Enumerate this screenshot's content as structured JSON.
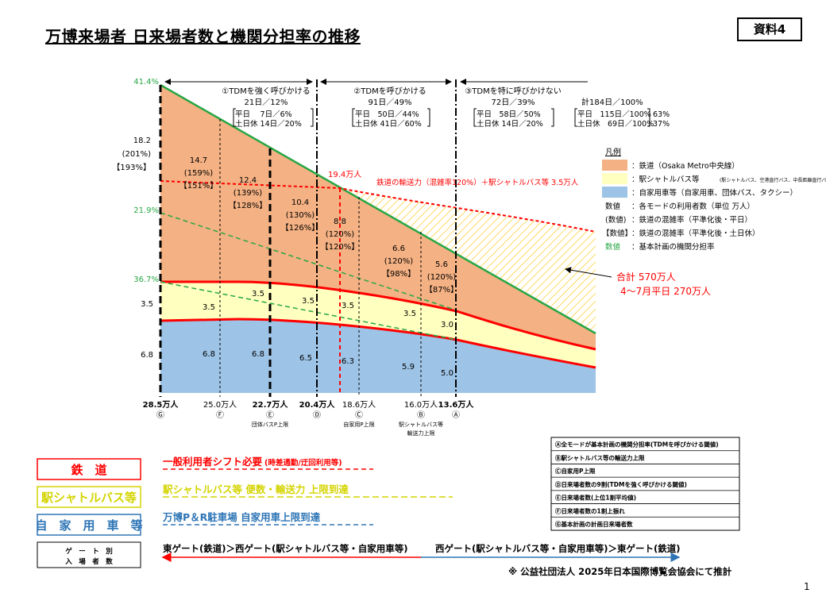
{
  "title": "万博来場者 日来場者数と機関分担率の推移",
  "doc_badge": "資料4",
  "footer_note": "※ 公益社団法人 2025年日本国際博覧会協会にて推計",
  "page_number": "1",
  "chart_data": {
    "type": "area",
    "title": "",
    "xlabel": "",
    "ylabel": "",
    "x_labels": [
      {
        "value": "28.5万人",
        "mark": "Ⓖ",
        "bold": true,
        "sub": ""
      },
      {
        "value": "25.0万人",
        "mark": "Ⓕ",
        "bold": false,
        "sub": ""
      },
      {
        "value": "22.7万人",
        "mark": "Ⓔ",
        "bold": true,
        "sub": "団体バスP上限"
      },
      {
        "value": "20.4万人",
        "mark": "Ⓓ",
        "bold": true,
        "sub": ""
      },
      {
        "value": "18.6万人",
        "mark": "Ⓒ",
        "bold": false,
        "sub": "自家用P上限"
      },
      {
        "value": "16.0万人",
        "mark": "Ⓑ",
        "bold": false,
        "sub": "駅シャトルバス等\n輸送力上限"
      },
      {
        "value": "13.6万人",
        "mark": "Ⓐ",
        "bold": true,
        "sub": ""
      }
    ],
    "series": [
      {
        "name": "鉄道（Osaka Metro中央線）",
        "color": "#f4b183"
      },
      {
        "name": "駅シャトルバス等",
        "color": "#ffffc0"
      },
      {
        "name": "自家用車等（自家用車、団体バス、タクシー）",
        "color": "#9dc3e6"
      }
    ],
    "left_axis_labels": [
      {
        "text": "41.4%",
        "green": true
      },
      {
        "text": "18.2",
        "green": false
      },
      {
        "text": "(201%)",
        "green": false
      },
      {
        "text": "【193%】",
        "green": false
      },
      {
        "text": "21.9%",
        "green": true
      },
      {
        "text": "36.7%",
        "green": true
      },
      {
        "text": "3.5",
        "green": false
      },
      {
        "text": "6.8",
        "green": false
      }
    ],
    "rail_labels": [
      {
        "v": "14.7",
        "c": "(159%)",
        "k": "【151%】"
      },
      {
        "v": "12.4",
        "c": "(139%)",
        "k": "【128%】"
      },
      {
        "v": "10.4",
        "c": "(130%)",
        "k": "【126%】"
      },
      {
        "v": "8.8",
        "c": "(120%)",
        "k": "【120%】"
      },
      {
        "v": "6.6",
        "c": "(120%)",
        "k": "【98%】"
      },
      {
        "v": "5.6",
        "c": "(120%)",
        "k": "【87%】"
      }
    ],
    "bus_labels": [
      "3.5",
      "3.5",
      "3.5",
      "3.5",
      "3.5",
      "3.0"
    ],
    "car_labels": [
      "6.8",
      "6.8",
      "6.5",
      "6.3",
      "5.9",
      "5.0"
    ],
    "capacity_label": "19.4万人",
    "capacity_line_label": "鉄道の輸送力（混雑率120%）＋駅シャトルバス等 3.5万人",
    "total_label_1": "合計 570万人",
    "total_label_2": "4～7月平日 270万人",
    "periods": [
      {
        "t1": "①TDMを強く呼びかける",
        "t2": "21日／12%",
        "t3": "平日　 7日／6%",
        "t4": "土日休 14日／20%"
      },
      {
        "t1": "②TDMを呼びかける",
        "t2": "91日／49%",
        "t3": "平日　50日／44%",
        "t4": "土日休 41日／60%"
      },
      {
        "t1": "③TDMを特に呼びかけない",
        "t2": "72日／39%",
        "t3": "平日　58日／50%",
        "t4": "土日休 14日／20%"
      }
    ],
    "total_period": {
      "t1": "計184日／100%",
      "t3": "平日　115日／100%",
      "t3b": "63%",
      "t4": "土日休　69日／100%",
      "t4b": "37%"
    },
    "legend": {
      "title": "凡例",
      "rail": "：鉄道（Osaka Metro中央線）",
      "bus": "：駅シャトルバス等",
      "bus_small": "(駅シャトルバス、空港直行バス、中長距離直行バス)",
      "car": "：自家用車等（自家用車、団体バス、タクシー）",
      "n1k": "数値",
      "n1": "：各モードの利用者数（単位 万人）",
      "n2k": "(数値)",
      "n2": "：鉄道の混雑率（平準化後・平日）",
      "n3k": "【数値】",
      "n3": "：鉄道の混雑率（平準化後・土日休）",
      "n4k": "数値",
      "n4": "：基本計画の機関分担率"
    }
  },
  "conditions": [
    "Ⓐ全モードが基本計画の機関分担率(TDMを呼びかける閾値)",
    "Ⓑ駅シャトルバス等の輸送力上限",
    "Ⓒ自家用P上限",
    "Ⓓ日来場者数の9割(TDMを強く呼びかける閾値)",
    "Ⓔ日来場者数(上位1割平均値)",
    "Ⓕ日来場者数の1割上振れ",
    "Ⓖ基本計画の計画日来場者数"
  ],
  "modes": [
    {
      "label": "鉄　道",
      "color": "#ff0000",
      "arrow": "一般利用者シフト必要",
      "arrow_small": "(時差通勤/迂回利用等)"
    },
    {
      "label": "駅シャトルバス等",
      "color": "#d4d400",
      "arrow": "駅シャトルバス等 便数・輸送力 上限到達",
      "arrow_small": ""
    },
    {
      "label": "自　家　用　車　等",
      "color": "#2e75b6",
      "arrow": "万博P＆R駐車場 自家用車上限到達",
      "arrow_small": ""
    }
  ],
  "gates": {
    "box_line1": "ゲ　ー　ト　別",
    "box_line2": "入　場　者　数",
    "left": "東ゲート(鉄道)＞西ゲート(駅シャトルバス等・自家用車等)",
    "right": "西ゲート(駅シャトルバス等・自家用車等)＞東ゲート(鉄道)"
  }
}
